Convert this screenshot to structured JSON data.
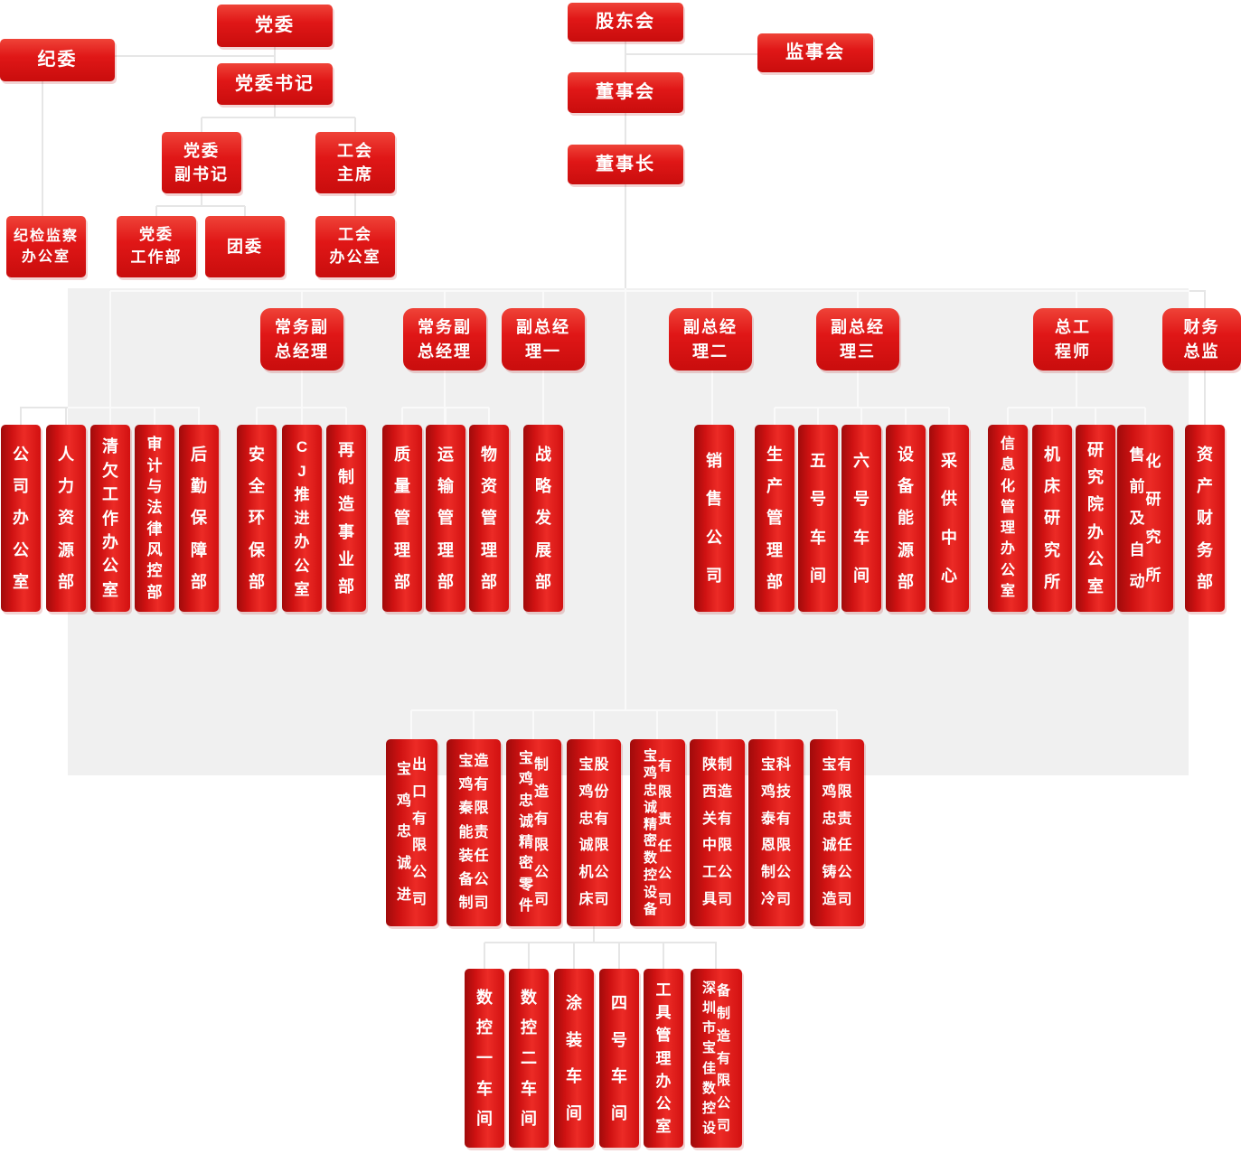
{
  "colors": {
    "box_red": "#d8100f",
    "box_red_highlight": "#ec2b26",
    "panel_gray": "#f0f0f0",
    "line_on_white": "#e6e6e6",
    "line_on_panel": "#fafafa",
    "text_white": "#ffffff"
  },
  "nodes": [
    {
      "name": "jiwei",
      "text": "纪委"
    },
    {
      "name": "dangwei",
      "text": "党委"
    },
    {
      "name": "dangwei-shuji",
      "text": "党委书记"
    },
    {
      "name": "dangwei-fushuji",
      "text": "党委\n副书记"
    },
    {
      "name": "gonghui-zhuxi",
      "text": "工会\n主席"
    },
    {
      "name": "jijian-jiancha-bangongshi",
      "text": "纪检监察\n办公室"
    },
    {
      "name": "dangwei-gongzuobu",
      "text": "党委\n工作部"
    },
    {
      "name": "tuanwei",
      "text": "团委"
    },
    {
      "name": "gonghui-bangongshi",
      "text": "工会\n办公室"
    },
    {
      "name": "gudonghui",
      "text": "股东会"
    },
    {
      "name": "jianshihui",
      "text": "监事会"
    },
    {
      "name": "dongshihui",
      "text": "董事会"
    },
    {
      "name": "dongshizhang",
      "text": "董事长"
    },
    {
      "name": "changwu-fuzongjingli-1",
      "text": "常务副\n总经理"
    },
    {
      "name": "changwu-fuzongjingli-2",
      "text": "常务副\n总经理"
    },
    {
      "name": "fuzongjingli-yi",
      "text": "副总经\n理一"
    },
    {
      "name": "fuzongjingli-er",
      "text": "副总经\n理二"
    },
    {
      "name": "fuzongjingli-san",
      "text": "副总经\n理三"
    },
    {
      "name": "zonggongchengshi",
      "text": "总工\n程师"
    },
    {
      "name": "caiwu-zongjian",
      "text": "财务\n总监"
    },
    {
      "name": "gongsi-bangongshi",
      "text": "公司办公室"
    },
    {
      "name": "renli-ziyuanbu",
      "text": "人力资源部"
    },
    {
      "name": "qingqian-gongzuo-bangongshi",
      "text": "清欠工作办公室"
    },
    {
      "name": "shenji-falv-fengkongbu",
      "text": "审计与法律风控部"
    },
    {
      "name": "houqin-baozhangbu",
      "text": "后勤保障部"
    },
    {
      "name": "anquan-huanbaobu",
      "text": "安全环保部"
    },
    {
      "name": "cj-tuijin-bangongshi",
      "text": "CJ推进办公室"
    },
    {
      "name": "zaizhizao-shiyebu",
      "text": "再制造事业部"
    },
    {
      "name": "zhiliang-guanlibu",
      "text": "质量管理部"
    },
    {
      "name": "yunshu-guanlibu",
      "text": "运输管理部"
    },
    {
      "name": "wuzi-guanlibu",
      "text": "物资管理部"
    },
    {
      "name": "zhanlve-fazhanbu",
      "text": "战略发展部"
    },
    {
      "name": "xiaoshou-gongsi",
      "text": "销售公司"
    },
    {
      "name": "shengchan-guanlibu",
      "text": "生产管理部"
    },
    {
      "name": "wuhao-chejian",
      "text": "五号车间"
    },
    {
      "name": "liuhao-chejian",
      "text": "六号车间"
    },
    {
      "name": "shebei-nengyuanbu",
      "text": "设备能源部"
    },
    {
      "name": "caigong-zhongxin",
      "text": "采供中心"
    },
    {
      "name": "xinxihua-guanli-bangongshi",
      "text": "信息化管理办公室"
    },
    {
      "name": "jichuang-yanjiusuo",
      "text": "机床研究所"
    },
    {
      "name": "yanjiuyuan-bangongshi",
      "text": "研究院办公室"
    },
    {
      "name": "shouqian-zidonghua-yanjiusuo",
      "text": "售前及自动",
      "text2": "化研究所"
    },
    {
      "name": "zichan-caiwubu",
      "text": "资产财务部"
    },
    {
      "name": "zhongcheng-jinchukou-gongsi",
      "text": "宝鸡忠诚进",
      "text2": "出口有限公司"
    },
    {
      "name": "qinneng-zhuangbei-gongsi",
      "text": "宝鸡秦能装备制",
      "text2": "造有限责任公司"
    },
    {
      "name": "jingmi-lingjian-gongsi",
      "text": "宝鸡忠诚精密零件",
      "text2": "制造有限公司"
    },
    {
      "name": "jichuang-gufen-gongsi",
      "text": "宝鸡忠诚机床",
      "text2": "股份有限公司"
    },
    {
      "name": "jingmi-shukong-shebei-gongsi",
      "text": "宝鸡忠诚精密数控设备",
      "text2": "有限责任公司"
    },
    {
      "name": "guanzhong-gongju-gongsi",
      "text": "陕西关中工具",
      "text2": "制造有限公司"
    },
    {
      "name": "taien-zhileng-gongsi",
      "text": "宝鸡泰恩制冷",
      "text2": "科技有限公司"
    },
    {
      "name": "zhongcheng-zhuzao-gongsi",
      "text": "宝鸡忠诚铸造",
      "text2": "有限责任公司"
    },
    {
      "name": "shukong-yi-chejian",
      "text": "数控一车间"
    },
    {
      "name": "shukong-er-chejian",
      "text": "数控二车间"
    },
    {
      "name": "tuzhuang-chejian",
      "text": "涂装车间"
    },
    {
      "name": "sihao-chejian",
      "text": "四号车间"
    },
    {
      "name": "gongju-guanli-bangongshi",
      "text": "工具管理办公室"
    },
    {
      "name": "shenzhen-baojia-gongsi",
      "text": "深圳市宝佳数控设",
      "text2": "备制造有限公司"
    }
  ]
}
